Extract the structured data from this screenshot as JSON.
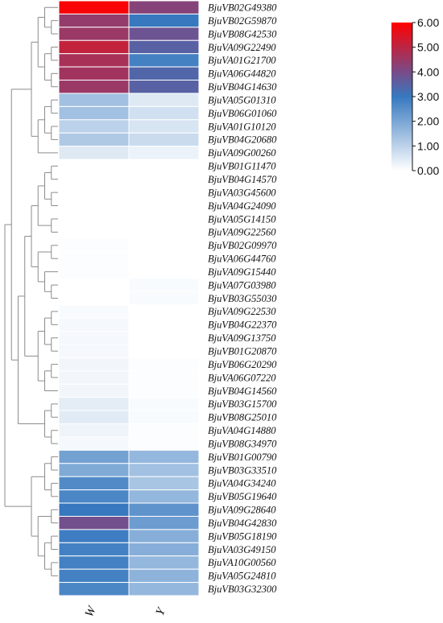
{
  "chart_data": {
    "type": "heatmap",
    "columns": [
      "W",
      "Y"
    ],
    "rows": [
      {
        "gene": "BjuVB02G49380",
        "W": 5.9,
        "Y": 4.2
      },
      {
        "gene": "BjuVB02G59870",
        "W": 4.4,
        "Y": 3.0
      },
      {
        "gene": "BjuVB08G42530",
        "W": 4.5,
        "Y": 3.8
      },
      {
        "gene": "BjuVA09G22490",
        "W": 5.1,
        "Y": 3.5
      },
      {
        "gene": "BjuVA01G21700",
        "W": 4.7,
        "Y": 2.8
      },
      {
        "gene": "BjuVA06G44820",
        "W": 4.6,
        "Y": 3.4
      },
      {
        "gene": "BjuVB04G14630",
        "W": 4.5,
        "Y": 3.5
      },
      {
        "gene": "BjuVA05G01310",
        "W": 1.4,
        "Y": 0.5
      },
      {
        "gene": "BjuVB06G01060",
        "W": 1.4,
        "Y": 0.7
      },
      {
        "gene": "BjuVA01G10120",
        "W": 1.0,
        "Y": 0.6
      },
      {
        "gene": "BjuVB04G20680",
        "W": 1.2,
        "Y": 0.8
      },
      {
        "gene": "BjuVA09G00260",
        "W": 0.5,
        "Y": 0.3
      },
      {
        "gene": "BjuVB01G11470",
        "W": 0.0,
        "Y": 0.0
      },
      {
        "gene": "BjuVB04G14570",
        "W": 0.0,
        "Y": 0.0
      },
      {
        "gene": "BjuVA03G45600",
        "W": 0.0,
        "Y": 0.0
      },
      {
        "gene": "BjuVA04G24090",
        "W": 0.0,
        "Y": 0.0
      },
      {
        "gene": "BjuVA05G14150",
        "W": 0.0,
        "Y": 0.0
      },
      {
        "gene": "BjuVA09G22560",
        "W": 0.0,
        "Y": 0.0
      },
      {
        "gene": "BjuVB02G09970",
        "W": 0.05,
        "Y": 0.0
      },
      {
        "gene": "BjuVA06G44760",
        "W": 0.05,
        "Y": 0.0
      },
      {
        "gene": "BjuVA09G15440",
        "W": 0.05,
        "Y": 0.0
      },
      {
        "gene": "BjuVA07G03980",
        "W": 0.0,
        "Y": 0.1
      },
      {
        "gene": "BjuVB03G55030",
        "W": 0.0,
        "Y": 0.1
      },
      {
        "gene": "BjuVA09G22530",
        "W": 0.1,
        "Y": 0.0
      },
      {
        "gene": "BjuVB04G22370",
        "W": 0.15,
        "Y": 0.0
      },
      {
        "gene": "BjuVA09G13750",
        "W": 0.15,
        "Y": 0.0
      },
      {
        "gene": "BjuVB01G20870",
        "W": 0.15,
        "Y": 0.0
      },
      {
        "gene": "BjuVB06G20290",
        "W": 0.2,
        "Y": 0.05
      },
      {
        "gene": "BjuVA06G07220",
        "W": 0.2,
        "Y": 0.05
      },
      {
        "gene": "BjuVB04G14560",
        "W": 0.2,
        "Y": 0.05
      },
      {
        "gene": "BjuVB03G15700",
        "W": 0.4,
        "Y": 0.1
      },
      {
        "gene": "BjuVB08G25010",
        "W": 0.45,
        "Y": 0.1
      },
      {
        "gene": "BjuVA04G14880",
        "W": 0.25,
        "Y": 0.05
      },
      {
        "gene": "BjuVB08G34970",
        "W": 0.15,
        "Y": 0.05
      },
      {
        "gene": "BjuVB01G00790",
        "W": 2.1,
        "Y": 1.6
      },
      {
        "gene": "BjuVB03G33510",
        "W": 1.9,
        "Y": 1.4
      },
      {
        "gene": "BjuVA04G34240",
        "W": 2.6,
        "Y": 1.3
      },
      {
        "gene": "BjuVB05G19640",
        "W": 2.7,
        "Y": 1.6
      },
      {
        "gene": "BjuVA09G28640",
        "W": 3.0,
        "Y": 2.4
      },
      {
        "gene": "BjuVB04G42830",
        "W": 3.9,
        "Y": 2.2
      },
      {
        "gene": "BjuVB05G18190",
        "W": 2.9,
        "Y": 1.8
      },
      {
        "gene": "BjuVA03G49150",
        "W": 2.8,
        "Y": 1.8
      },
      {
        "gene": "BjuVA10G00560",
        "W": 2.8,
        "Y": 1.6
      },
      {
        "gene": "BjuVA05G24810",
        "W": 2.8,
        "Y": 1.7
      },
      {
        "gene": "BjuVB03G32300",
        "W": 2.7,
        "Y": 1.6
      }
    ],
    "colorbar": {
      "min": 0,
      "max": 6,
      "ticks": [
        "0.00",
        "1.00",
        "2.00",
        "3.00",
        "4.00",
        "5.00",
        "6.00"
      ],
      "colors": [
        "#ffffff",
        "#3778bf",
        "#ff0000"
      ]
    },
    "dendrogram_color": "#8c8c8c"
  }
}
